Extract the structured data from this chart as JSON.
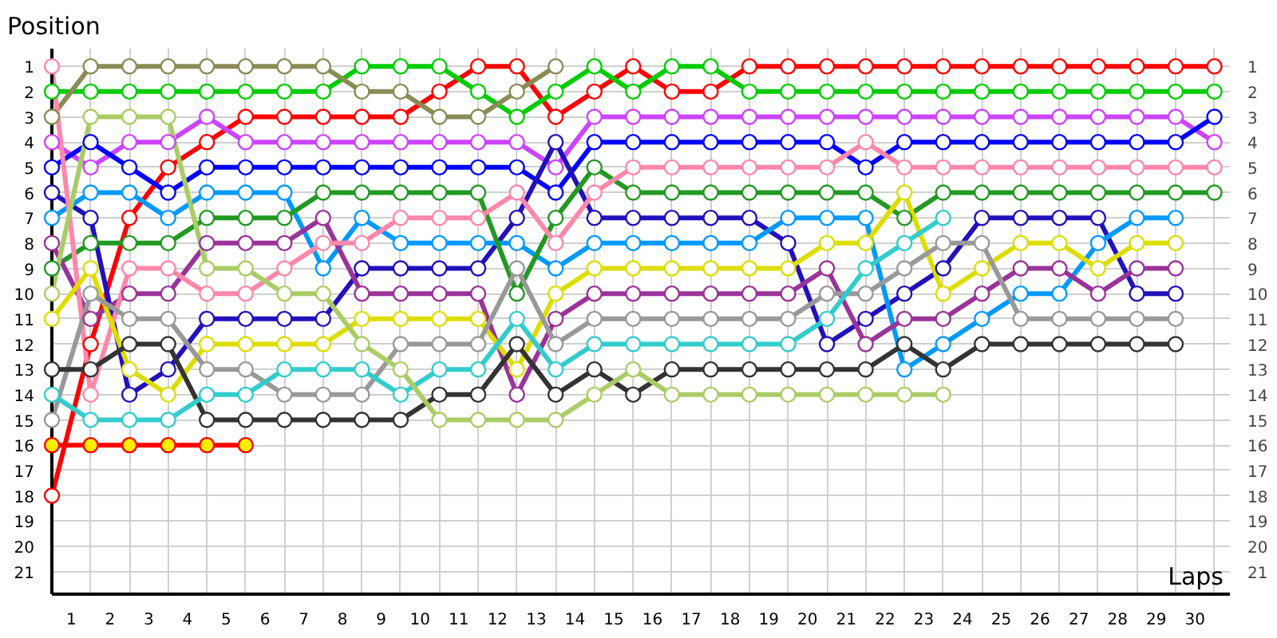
{
  "chart_data": {
    "type": "line",
    "ylabel": "Position",
    "xlabel": "Laps",
    "x": [
      0,
      1,
      2,
      3,
      4,
      5,
      6,
      7,
      8,
      9,
      10,
      11,
      12,
      13,
      14,
      15,
      16,
      17,
      18,
      19,
      20,
      21,
      22,
      23,
      24,
      25,
      26,
      27,
      28,
      29,
      30
    ],
    "xlim": [
      0,
      30.4
    ],
    "xticks": [
      {
        "value": 0,
        "label": null
      },
      {
        "value": 0.5,
        "label": "1"
      },
      {
        "value": 1,
        "label": null
      },
      {
        "value": 1.5,
        "label": "2"
      },
      {
        "value": 2,
        "label": null
      },
      {
        "value": 2.5,
        "label": "3"
      },
      {
        "value": 3,
        "label": null
      },
      {
        "value": 3.5,
        "label": "4"
      },
      {
        "value": 4,
        "label": null
      },
      {
        "value": 4.5,
        "label": "5"
      },
      {
        "value": 5,
        "label": null
      },
      {
        "value": 5.5,
        "label": "6"
      },
      {
        "value": 6,
        "label": null
      },
      {
        "value": 6.5,
        "label": "7"
      },
      {
        "value": 7,
        "label": null
      },
      {
        "value": 7.5,
        "label": "8"
      },
      {
        "value": 8,
        "label": null
      },
      {
        "value": 8.5,
        "label": "9"
      },
      {
        "value": 9,
        "label": null
      },
      {
        "value": 9.5,
        "label": "10"
      },
      {
        "value": 10,
        "label": null
      },
      {
        "value": 10.5,
        "label": "11"
      },
      {
        "value": 11,
        "label": null
      },
      {
        "value": 11.5,
        "label": "12"
      },
      {
        "value": 12,
        "label": null
      },
      {
        "value": 12.5,
        "label": "13"
      },
      {
        "value": 13,
        "label": null
      },
      {
        "value": 13.5,
        "label": "14"
      },
      {
        "value": 14,
        "label": null
      },
      {
        "value": 14.5,
        "label": "15"
      },
      {
        "value": 15,
        "label": null
      },
      {
        "value": 15.5,
        "label": "16"
      },
      {
        "value": 16,
        "label": null
      },
      {
        "value": 16.5,
        "label": "17"
      },
      {
        "value": 17,
        "label": null
      },
      {
        "value": 17.5,
        "label": "18"
      },
      {
        "value": 18,
        "label": null
      },
      {
        "value": 18.5,
        "label": "19"
      },
      {
        "value": 19,
        "label": null
      },
      {
        "value": 19.5,
        "label": "20"
      },
      {
        "value": 20,
        "label": null
      },
      {
        "value": 20.5,
        "label": "21"
      },
      {
        "value": 21,
        "label": null
      },
      {
        "value": 21.5,
        "label": "22"
      },
      {
        "value": 22,
        "label": null
      },
      {
        "value": 22.5,
        "label": "23"
      },
      {
        "value": 23,
        "label": null
      },
      {
        "value": 23.5,
        "label": "24"
      },
      {
        "value": 24,
        "label": null
      },
      {
        "value": 24.5,
        "label": "25"
      },
      {
        "value": 25,
        "label": null
      },
      {
        "value": 25.5,
        "label": "26"
      },
      {
        "value": 26,
        "label": null
      },
      {
        "value": 26.5,
        "label": "27"
      },
      {
        "value": 27,
        "label": null
      },
      {
        "value": 27.5,
        "label": "28"
      },
      {
        "value": 28,
        "label": null
      },
      {
        "value": 28.5,
        "label": "29"
      },
      {
        "value": 29,
        "label": null
      },
      {
        "value": 29.5,
        "label": "30"
      },
      {
        "value": 30,
        "label": null
      }
    ],
    "ylim": [
      21.9,
      0.3
    ],
    "yticks": [
      1,
      2,
      3,
      4,
      5,
      6,
      7,
      8,
      9,
      10,
      11,
      12,
      13,
      14,
      15,
      16,
      17,
      18,
      19,
      20,
      21
    ],
    "y2lim": [
      21.9,
      0.3
    ],
    "y2ticks": [
      1,
      2,
      3,
      4,
      5,
      6,
      7,
      8,
      9,
      10,
      11,
      12,
      13,
      14,
      15,
      16,
      17,
      18,
      19,
      20,
      21
    ],
    "grid": true,
    "marker": "circle",
    "line_style": "solid",
    "series": [
      {
        "color": "#ff0000",
        "values": [
          18,
          12,
          7,
          5,
          4,
          3,
          3,
          3,
          3,
          3,
          2,
          1,
          1,
          3,
          2,
          1,
          2,
          2,
          1,
          1,
          1,
          1,
          1,
          1,
          1,
          1,
          1,
          1,
          1,
          1,
          1
        ]
      },
      {
        "color": "#00cc00",
        "values": [
          2,
          2,
          2,
          2,
          2,
          2,
          2,
          2,
          1,
          1,
          1,
          2,
          3,
          2,
          1,
          2,
          1,
          1,
          2,
          2,
          2,
          2,
          2,
          2,
          2,
          2,
          2,
          2,
          2,
          2,
          2
        ]
      },
      {
        "color": "#8b8b55",
        "values": [
          3,
          1,
          1,
          1,
          1,
          1,
          1,
          1,
          2,
          2,
          3,
          3,
          2,
          1,
          null,
          null,
          null,
          null,
          null,
          null,
          null,
          null,
          null,
          null,
          null,
          null,
          null,
          null,
          null,
          null,
          null
        ]
      },
      {
        "color": "#cc44ff",
        "values": [
          4,
          5,
          4,
          4,
          3,
          4,
          4,
          4,
          4,
          4,
          4,
          4,
          4,
          5,
          3,
          3,
          3,
          3,
          3,
          3,
          3,
          3,
          3,
          3,
          3,
          3,
          3,
          3,
          3,
          3,
          4
        ]
      },
      {
        "color": "#0000ff",
        "values": [
          5,
          4,
          5,
          6,
          5,
          5,
          5,
          5,
          5,
          5,
          5,
          5,
          5,
          6,
          4,
          4,
          4,
          4,
          4,
          4,
          4,
          5,
          4,
          4,
          4,
          4,
          4,
          4,
          4,
          4,
          3
        ]
      },
      {
        "color": "#2211bb",
        "values": [
          6,
          7,
          14,
          13,
          11,
          11,
          11,
          11,
          9,
          9,
          9,
          9,
          7,
          4,
          7,
          7,
          7,
          7,
          7,
          8,
          12,
          11,
          10,
          9,
          7,
          7,
          7,
          7,
          10,
          10,
          null
        ]
      },
      {
        "color": "#0099ff",
        "values": [
          7,
          6,
          6,
          7,
          6,
          6,
          6,
          9,
          7,
          8,
          8,
          8,
          8,
          9,
          8,
          8,
          8,
          8,
          8,
          7,
          7,
          7,
          13,
          12,
          11,
          10,
          10,
          8,
          7,
          7,
          null
        ]
      },
      {
        "color": "#229922",
        "values": [
          9,
          8,
          8,
          8,
          7,
          7,
          7,
          6,
          6,
          6,
          6,
          6,
          10,
          7,
          5,
          6,
          6,
          6,
          6,
          6,
          6,
          6,
          7,
          6,
          6,
          6,
          6,
          6,
          6,
          6,
          6
        ]
      },
      {
        "color": "#993399",
        "values": [
          8,
          11,
          10,
          10,
          8,
          8,
          8,
          7,
          10,
          10,
          10,
          10,
          14,
          11,
          10,
          10,
          10,
          10,
          10,
          10,
          9,
          12,
          11,
          11,
          10,
          9,
          9,
          10,
          9,
          9,
          null
        ]
      },
      {
        "color": "#ff88aa",
        "values": [
          1,
          14,
          9,
          9,
          10,
          10,
          9,
          8,
          8,
          7,
          7,
          7,
          6,
          8,
          6,
          5,
          5,
          5,
          5,
          5,
          5,
          4,
          5,
          5,
          5,
          5,
          5,
          5,
          5,
          5,
          5
        ]
      },
      {
        "color": "#dddd00",
        "values": [
          11,
          9,
          13,
          14,
          12,
          12,
          12,
          12,
          11,
          11,
          11,
          11,
          13,
          10,
          9,
          9,
          9,
          9,
          9,
          9,
          8,
          8,
          6,
          10,
          9,
          8,
          8,
          9,
          8,
          8,
          null
        ]
      },
      {
        "color": "#999999",
        "values": [
          15,
          10,
          11,
          11,
          13,
          13,
          14,
          14,
          14,
          12,
          12,
          12,
          9,
          12,
          11,
          11,
          11,
          11,
          11,
          11,
          10,
          10,
          9,
          8,
          8,
          11,
          11,
          11,
          11,
          11,
          null
        ]
      },
      {
        "color": "#333333",
        "values": [
          13,
          13,
          12,
          12,
          15,
          15,
          15,
          15,
          15,
          15,
          14,
          14,
          12,
          14,
          13,
          14,
          13,
          13,
          13,
          13,
          13,
          13,
          12,
          13,
          12,
          12,
          12,
          12,
          12,
          12,
          null
        ]
      },
      {
        "color": "#33cccc",
        "values": [
          14,
          15,
          15,
          15,
          14,
          14,
          13,
          13,
          13,
          14,
          13,
          13,
          11,
          13,
          12,
          12,
          12,
          12,
          12,
          12,
          11,
          9,
          8,
          7,
          null,
          null,
          null,
          null,
          null,
          null,
          null
        ]
      },
      {
        "color": "#aacc66",
        "values": [
          10,
          3,
          3,
          3,
          9,
          9,
          10,
          10,
          12,
          13,
          15,
          15,
          15,
          15,
          14,
          13,
          14,
          14,
          14,
          14,
          14,
          14,
          14,
          14,
          null,
          null,
          null,
          null,
          null,
          null,
          null
        ]
      },
      {
        "color": "#ff0000",
        "colors": [
          "#ffee00",
          "#ffee00",
          "#ffee00",
          "#ffee00",
          "#ffee00",
          "#ffee00",
          null,
          null,
          null,
          null,
          null,
          null,
          null,
          null,
          null,
          null,
          null,
          null,
          null,
          null,
          null,
          null,
          null,
          null,
          null,
          null,
          null,
          null,
          null,
          null,
          null
        ],
        "values": [
          16,
          16,
          16,
          16,
          16,
          16,
          null,
          null,
          null,
          null,
          null,
          null,
          null,
          null,
          null,
          null,
          null,
          null,
          null,
          null,
          null,
          null,
          null,
          null,
          null,
          null,
          null,
          null,
          null,
          null,
          null
        ]
      }
    ]
  }
}
